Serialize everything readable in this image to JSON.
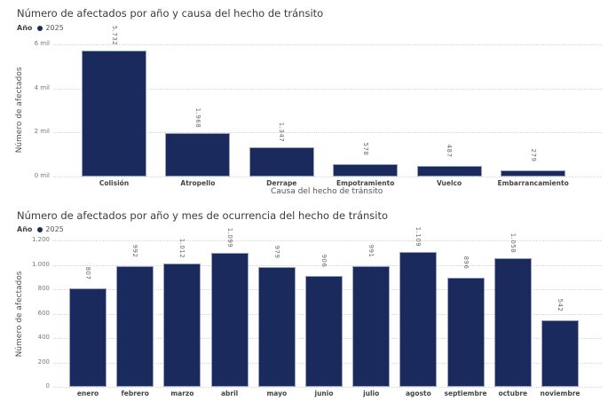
{
  "legend": {
    "label": "Año",
    "series": "2025",
    "color": "#1b2a5c"
  },
  "chart_data": [
    {
      "type": "bar",
      "title": "Número de afectados por año y causa del hecho de tránsito",
      "xlabel": "Causa del hecho de tránsito",
      "ylabel": "Número de afectados",
      "ylim": [
        0,
        6000
      ],
      "yticks": [
        "0 mil",
        "2 mil",
        "4 mil",
        "6 mil"
      ],
      "grid": true,
      "legend_position": "top-left",
      "categories": [
        "Colisión",
        "Atropello",
        "Derrape",
        "Empotramiento",
        "Vuelco",
        "Embarrancamiento"
      ],
      "series": [
        {
          "name": "2025",
          "values": [
            5732,
            1968,
            1347,
            578,
            487,
            279
          ]
        }
      ],
      "value_labels": [
        "5.732",
        "1.968",
        "1.347",
        "578",
        "487",
        "279"
      ]
    },
    {
      "type": "bar",
      "title": "Número de afectados por año y mes de ocurrencia del hecho de tránsito",
      "xlabel": "",
      "ylabel": "Número de afectados",
      "ylim": [
        0,
        1200
      ],
      "yticks": [
        "0",
        "200",
        "400",
        "600",
        "800",
        "1.000",
        "1.200"
      ],
      "grid": true,
      "legend_position": "top-left",
      "categories": [
        "enero",
        "febrero",
        "marzo",
        "abril",
        "mayo",
        "junio",
        "julio",
        "agosto",
        "septiembre",
        "octubre",
        "noviembre"
      ],
      "series": [
        {
          "name": "2025",
          "values": [
            807,
            992,
            1012,
            1099,
            979,
            906,
            991,
            1109,
            896,
            1058,
            542
          ]
        }
      ],
      "value_labels": [
        "807",
        "992",
        "1.012",
        "1.099",
        "979",
        "906",
        "991",
        "1.109",
        "896",
        "1.058",
        "542"
      ]
    }
  ]
}
